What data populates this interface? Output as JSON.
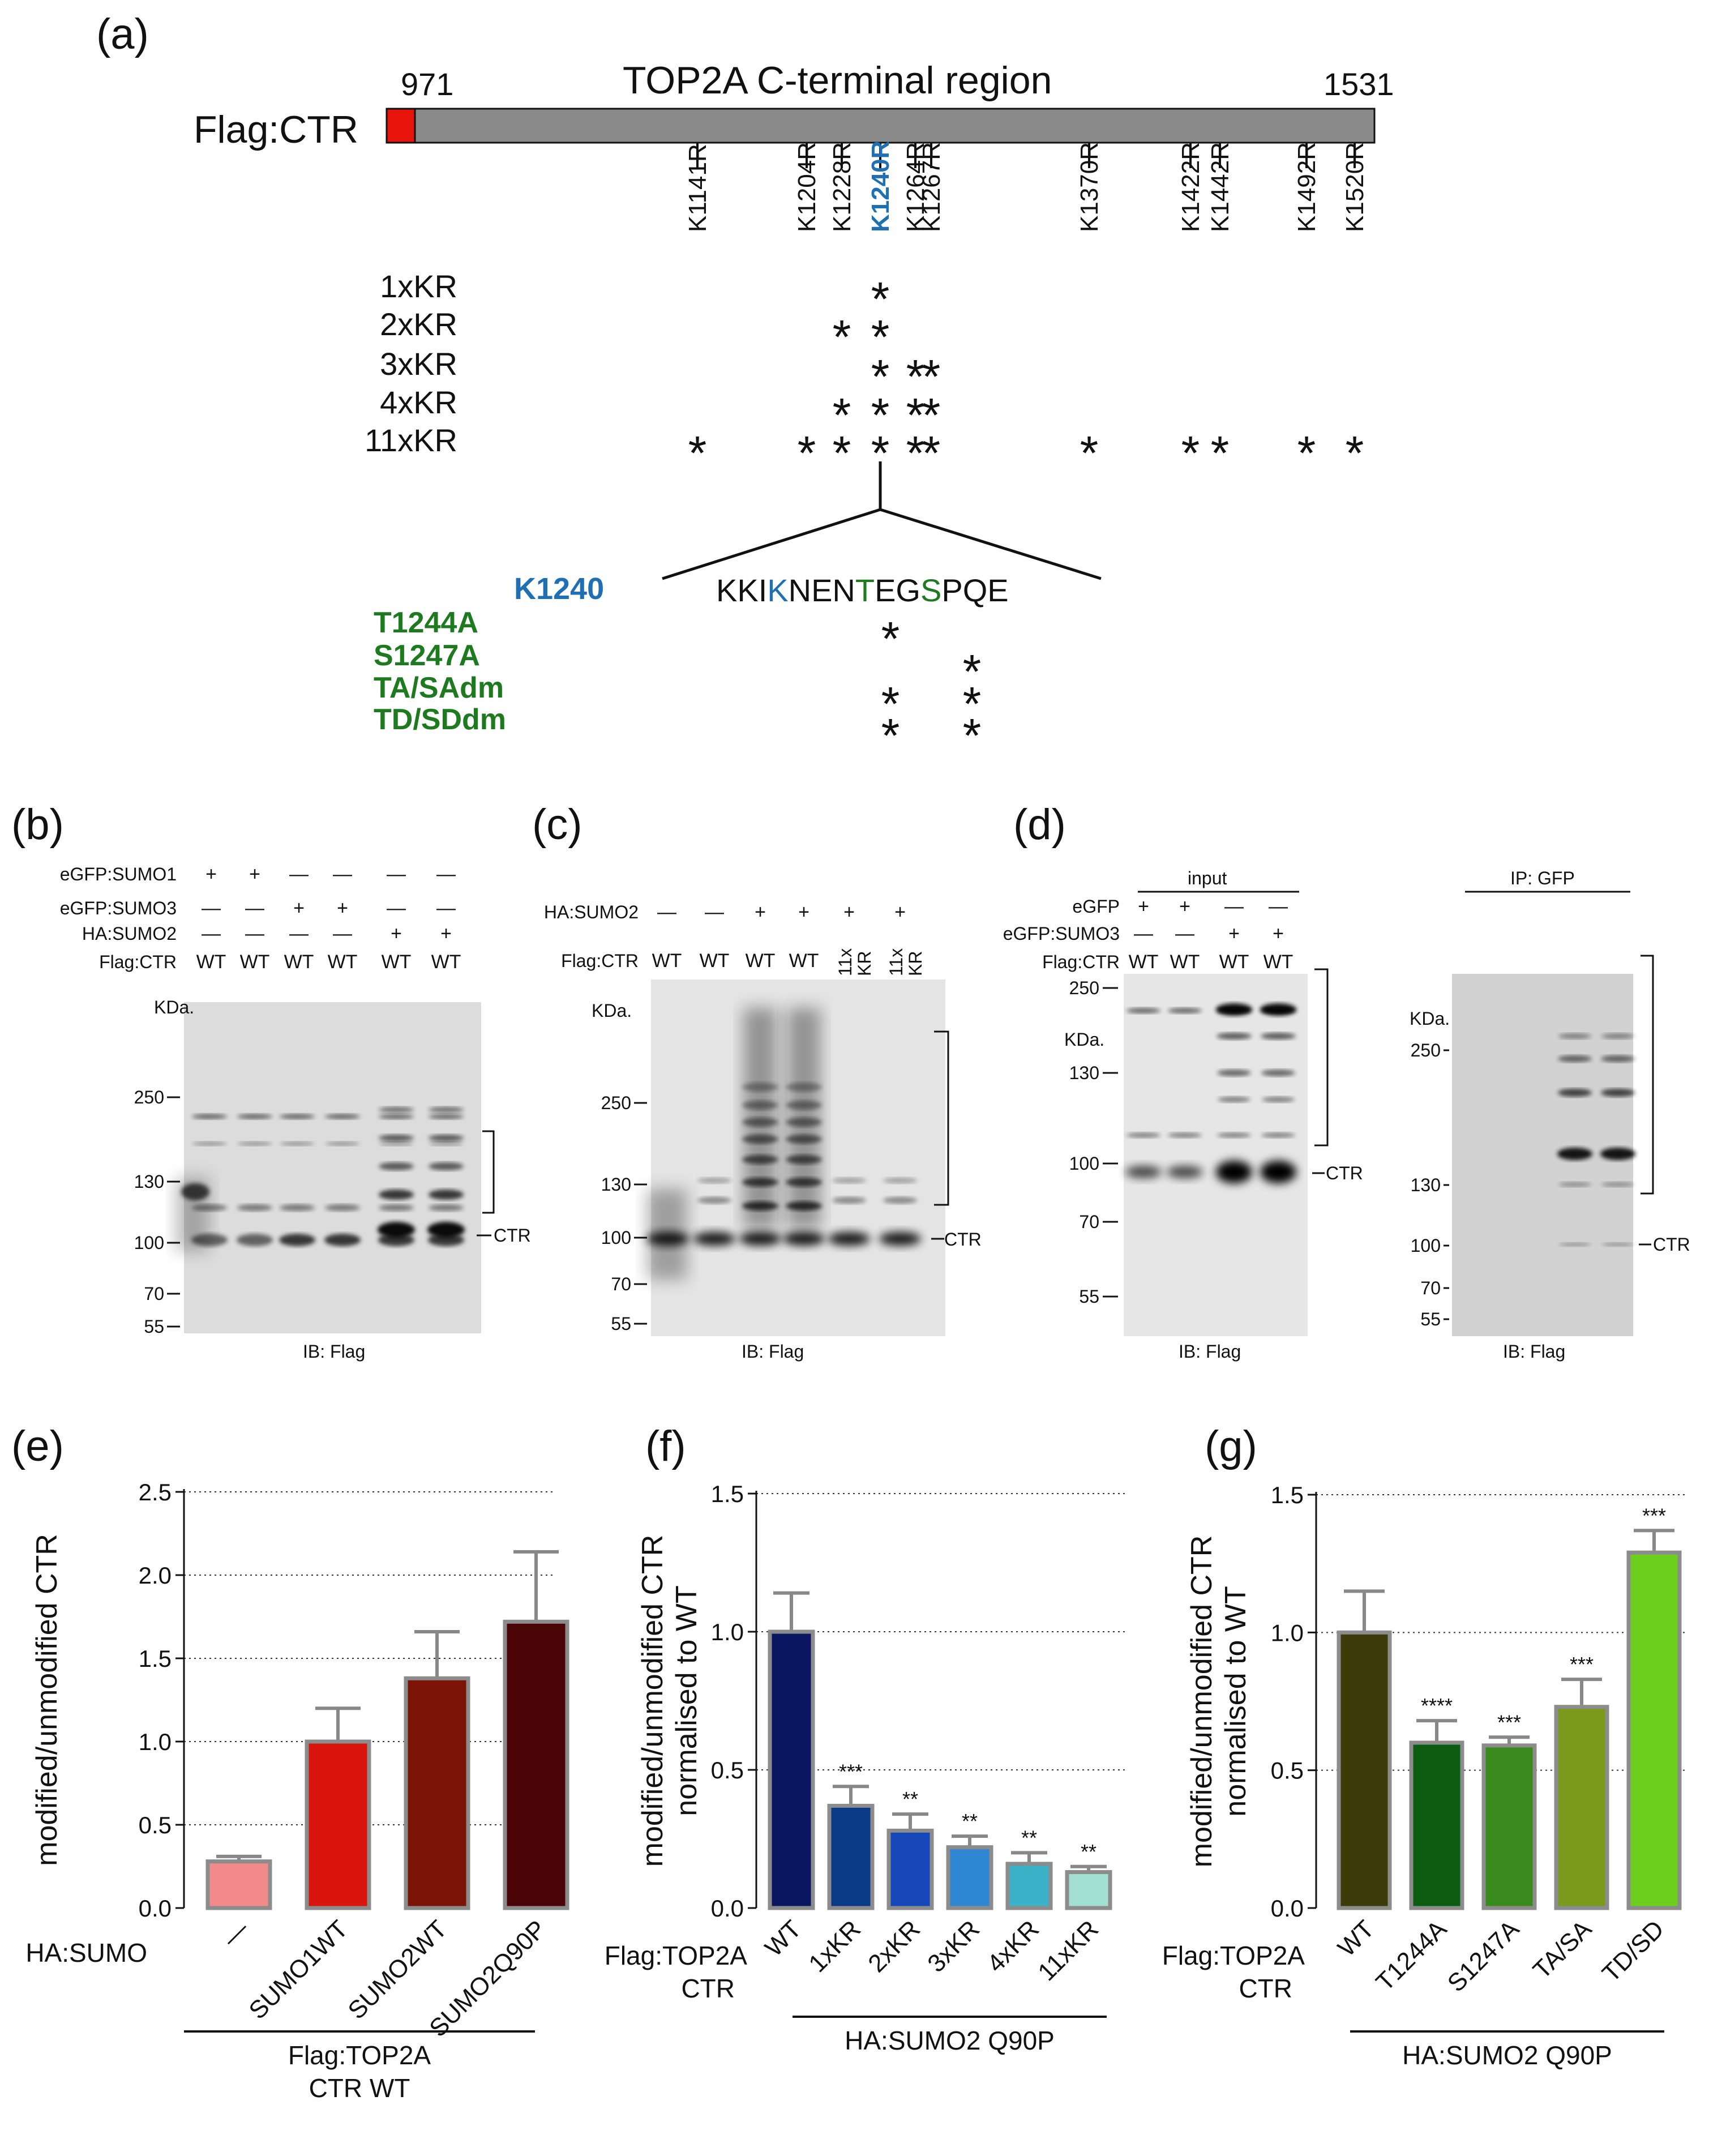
{
  "panel_a": {
    "label": "(a)",
    "construct_name": "Flag:CTR",
    "region_title": "TOP2A C-terminal region",
    "start_residue": "971",
    "end_residue": "1531",
    "sites": [
      {
        "name": "K1141R",
        "highlight": false
      },
      {
        "name": "K1204R",
        "highlight": false
      },
      {
        "name": "K1228R",
        "highlight": false
      },
      {
        "name": "K1240R",
        "highlight": true
      },
      {
        "name": "K1264R",
        "highlight": false
      },
      {
        "name": "K1267R",
        "highlight": false
      },
      {
        "name": "K1370R",
        "highlight": false
      },
      {
        "name": "K1422R",
        "highlight": false
      },
      {
        "name": "K1442R",
        "highlight": false
      },
      {
        "name": "K1492R",
        "highlight": false
      },
      {
        "name": "K1520R",
        "highlight": false
      }
    ],
    "mutants": [
      "1xKR",
      "2xKR",
      "3xKR",
      "4xKR",
      "11xKR"
    ],
    "mutant_sites": {
      "1xKR": [
        3
      ],
      "2xKR": [
        2,
        3
      ],
      "3xKR": [
        3,
        4,
        5
      ],
      "4xKR": [
        2,
        3,
        4,
        5
      ],
      "11xKR": [
        0,
        1,
        2,
        3,
        4,
        5,
        6,
        7,
        8,
        9,
        10
      ]
    },
    "star": "*",
    "zoom_site": "K1240",
    "sequence": {
      "pre": "KKI",
      "k": "K",
      "mid": "NEN",
      "t": "T",
      "mid2": "EG",
      "s": "S",
      "post": "PQE"
    },
    "phospho_mutants": [
      "T1244A",
      "S1247A",
      "TA/SAdm",
      "TD/SDdm"
    ],
    "phospho_sites": {
      "T1244A": [
        "T"
      ],
      "S1247A": [
        "S"
      ],
      "TA/SAdm": [
        "T",
        "S"
      ],
      "TD/SDdm": [
        "T",
        "S"
      ]
    }
  },
  "panel_b": {
    "label": "(b)",
    "rows": [
      {
        "name": "eGFP:SUMO1",
        "marks": [
          "+",
          "+",
          "—",
          "—",
          "—",
          "—"
        ]
      },
      {
        "name": "eGFP:SUMO3",
        "marks": [
          "—",
          "—",
          "+",
          "+",
          "—",
          "—"
        ]
      },
      {
        "name": "HA:SUMO2",
        "marks": [
          "—",
          "—",
          "—",
          "—",
          "+",
          "+"
        ]
      },
      {
        "name": "Flag:CTR",
        "marks": [
          "WT",
          "WT",
          "WT",
          "WT",
          "WT",
          "WT"
        ]
      }
    ],
    "kda_label": "KDa.",
    "markers": [
      "250",
      "130",
      "100",
      "70",
      "55"
    ],
    "ctr_label": "CTR",
    "ib_label": "IB: Flag"
  },
  "panel_c": {
    "label": "(c)",
    "rows": [
      {
        "name": "HA:SUMO2",
        "marks": [
          "—",
          "—",
          "+",
          "+",
          "+",
          "+"
        ]
      },
      {
        "name": "Flag:CTR",
        "marks": [
          "WT",
          "WT",
          "WT",
          "WT",
          "11x KR",
          "11x KR"
        ]
      }
    ],
    "kda_label": "KDa.",
    "markers": [
      "250",
      "130",
      "100",
      "70",
      "55"
    ],
    "ctr_label": "CTR",
    "ib_label": "IB: Flag"
  },
  "panel_d": {
    "label": "(d)",
    "input_title": "input",
    "ip_title": "IP: GFP",
    "rows": [
      {
        "name": "eGFP",
        "marks": [
          "+",
          "+",
          "—",
          "—"
        ]
      },
      {
        "name": "eGFP:SUMO3",
        "marks": [
          "—",
          "—",
          "+",
          "+"
        ]
      },
      {
        "name": "Flag:CTR",
        "marks": [
          "WT",
          "WT",
          "WT",
          "WT"
        ]
      }
    ],
    "input_kda_label": "KDa.",
    "input_markers": [
      "250",
      "130",
      "100",
      "70",
      "55"
    ],
    "ip_kda_label": "KDa.",
    "ip_markers": [
      "250",
      "130",
      "100",
      "70",
      "55"
    ],
    "ctr_label": "CTR",
    "ib_label": "IB: Flag"
  },
  "chart_data": [
    {
      "panel": "(e)",
      "type": "bar",
      "ylabel": "modified/unmodified CTR",
      "ylim": [
        0,
        2.5
      ],
      "yticks": [
        "0.0",
        "0.5",
        "1.0",
        "1.5",
        "2.0",
        "2.5"
      ],
      "categories": [
        "—",
        "SUMO1WT",
        "SUMO2WT",
        "SUMO2Q90P"
      ],
      "values": [
        0.28,
        1.0,
        1.38,
        1.72
      ],
      "errors": [
        0.03,
        0.2,
        0.28,
        0.42
      ],
      "colors": [
        "#f28a8a",
        "#d9140c",
        "#7d1408",
        "#4a0406"
      ],
      "significance": [
        "",
        "",
        "",
        ""
      ],
      "row_label": "HA:SUMO",
      "group_label": "Flag:TOP2A",
      "group_label2": "CTR WT"
    },
    {
      "panel": "(f)",
      "type": "bar",
      "ylabel": "modified/unmodified CTR",
      "ylabel2": "normalised to WT",
      "ylim": [
        0,
        1.5
      ],
      "yticks": [
        "0.0",
        "0.5",
        "1.0",
        "1.5"
      ],
      "categories": [
        "WT",
        "1xKR",
        "2xKR",
        "3xKR",
        "4xKR",
        "11xKR"
      ],
      "values": [
        1.0,
        0.37,
        0.28,
        0.22,
        0.16,
        0.13
      ],
      "errors": [
        0.14,
        0.07,
        0.06,
        0.04,
        0.04,
        0.02
      ],
      "colors": [
        "#0a1760",
        "#0d3a86",
        "#1547b8",
        "#2f86d2",
        "#3cb2c9",
        "#a3e0d2"
      ],
      "significance": [
        "",
        "***",
        "**",
        "**",
        "**",
        "**"
      ],
      "row_label": "Flag:TOP2A",
      "row_label2": "CTR",
      "group_label": "HA:SUMO2 Q90P"
    },
    {
      "panel": "(g)",
      "type": "bar",
      "ylabel": "modified/unmodified CTR",
      "ylabel2": "normalised to WT",
      "ylim": [
        0,
        1.5
      ],
      "yticks": [
        "0.0",
        "0.5",
        "1.0",
        "1.5"
      ],
      "categories": [
        "WT",
        "T1244A",
        "S1247A",
        "TA/SA",
        "TD/SD"
      ],
      "values": [
        1.0,
        0.6,
        0.59,
        0.73,
        1.29
      ],
      "errors": [
        0.15,
        0.08,
        0.03,
        0.1,
        0.08
      ],
      "colors": [
        "#3e3b0a",
        "#0c5c12",
        "#3a8b1e",
        "#7a9a1c",
        "#6ccf1e"
      ],
      "significance": [
        "",
        "****",
        "***",
        "***",
        "***"
      ],
      "row_label": "Flag:TOP2A",
      "row_label2": "CTR",
      "group_label": "HA:SUMO2 Q90P"
    }
  ]
}
